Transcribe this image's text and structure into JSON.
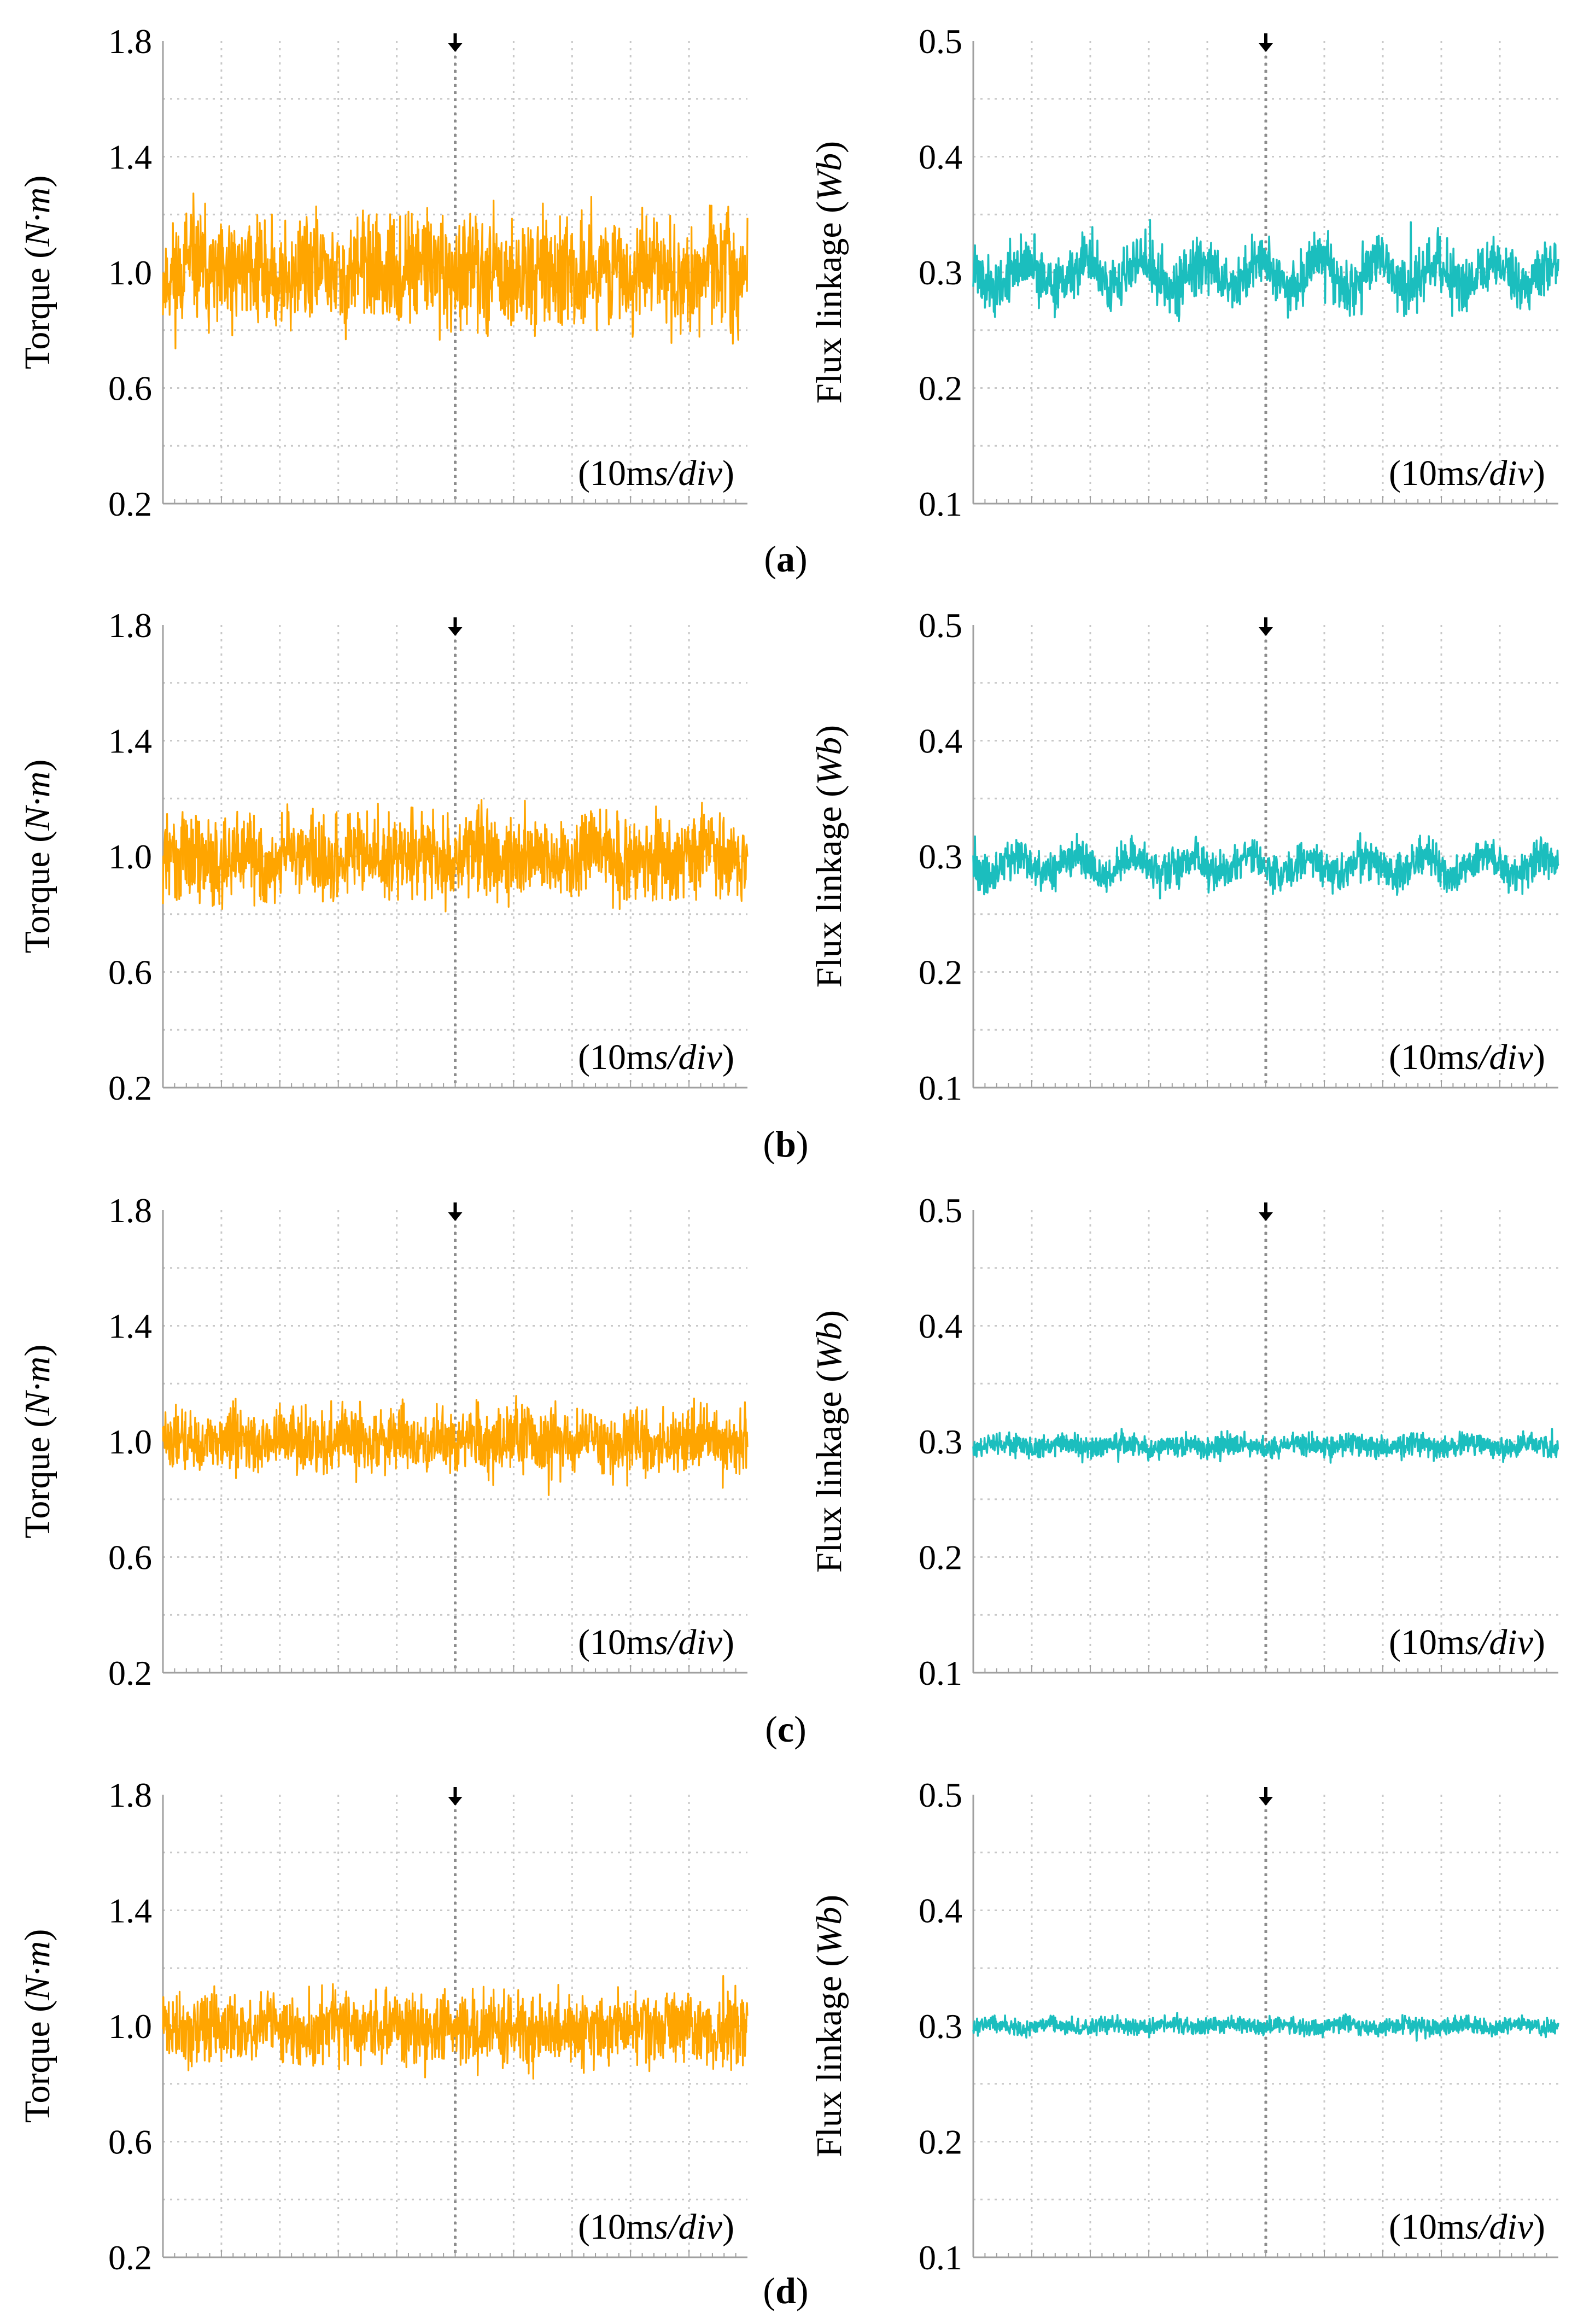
{
  "figure": {
    "panel_labels": [
      {
        "open": "(",
        "letter": "a",
        "close": ")"
      },
      {
        "open": "(",
        "letter": "b",
        "close": ")"
      },
      {
        "open": "(",
        "letter": "c",
        "close": ")"
      },
      {
        "open": "(",
        "letter": "d",
        "close": ")"
      }
    ],
    "colors": {
      "torque": "#FFA500",
      "flux": "#1BBEBE",
      "grid": "#C8C8C8",
      "axis": "#A0A0A0",
      "marker": "#000000"
    }
  },
  "chart_data": [
    {
      "id": "a-torque",
      "type": "line",
      "panel": "a",
      "column": "left",
      "ylabel": {
        "prefix": "Torque (",
        "unit": "N·m",
        "suffix": ")"
      },
      "time_scale": {
        "prefix": "(10m",
        "unit": "s/div",
        "suffix": ")"
      },
      "yticks": [
        "0.2",
        "0.6",
        "1.0",
        "1.4",
        "1.8"
      ],
      "ylim": [
        0.2,
        1.8
      ],
      "xlim": [
        0,
        100
      ],
      "xlabel": "",
      "grid": true,
      "trigger_marker_x": 50,
      "series": [
        {
          "name": "Torque",
          "mean": 1.0,
          "ripple": 0.24,
          "wave_amp": 0.03,
          "wave_period": 10,
          "seed": 11
        }
      ]
    },
    {
      "id": "a-flux",
      "type": "line",
      "panel": "a",
      "column": "right",
      "ylabel": {
        "prefix": "Flux linkage (",
        "unit": "Wb",
        "suffix": ")"
      },
      "time_scale": {
        "prefix": "(10m",
        "unit": "s/div",
        "suffix": ")"
      },
      "yticks": [
        "0.1",
        "0.2",
        "0.3",
        "0.4",
        "0.5"
      ],
      "ylim": [
        0.1,
        0.5
      ],
      "xlim": [
        0,
        100
      ],
      "xlabel": "",
      "grid": true,
      "trigger_marker_x": 50,
      "series": [
        {
          "name": "Flux linkage",
          "mean": 0.298,
          "ripple": 0.03,
          "wave_amp": 0.012,
          "wave_period": 10,
          "seed": 21
        }
      ]
    },
    {
      "id": "b-torque",
      "type": "line",
      "panel": "b",
      "column": "left",
      "ylabel": {
        "prefix": "Torque (",
        "unit": "N·m",
        "suffix": ")"
      },
      "time_scale": {
        "prefix": "(10m",
        "unit": "s/div",
        "suffix": ")"
      },
      "yticks": [
        "0.2",
        "0.6",
        "1.0",
        "1.4",
        "1.8"
      ],
      "ylim": [
        0.2,
        1.8
      ],
      "xlim": [
        0,
        100
      ],
      "xlabel": "",
      "grid": true,
      "trigger_marker_x": 50,
      "series": [
        {
          "name": "Torque",
          "mean": 1.0,
          "ripple": 0.18,
          "wave_amp": 0.02,
          "wave_period": 10,
          "seed": 31
        }
      ]
    },
    {
      "id": "b-flux",
      "type": "line",
      "panel": "b",
      "column": "right",
      "ylabel": {
        "prefix": "Flux linkage (",
        "unit": "Wb",
        "suffix": ")"
      },
      "time_scale": {
        "prefix": "(10m",
        "unit": "s/div",
        "suffix": ")"
      },
      "yticks": [
        "0.1",
        "0.2",
        "0.3",
        "0.4",
        "0.5"
      ],
      "ylim": [
        0.1,
        0.5
      ],
      "xlim": [
        0,
        100
      ],
      "xlabel": "",
      "grid": true,
      "trigger_marker_x": 50,
      "series": [
        {
          "name": "Flux linkage",
          "mean": 0.292,
          "ripple": 0.02,
          "wave_amp": 0.008,
          "wave_period": 10,
          "seed": 41
        }
      ]
    },
    {
      "id": "c-torque",
      "type": "line",
      "panel": "c",
      "column": "left",
      "ylabel": {
        "prefix": "Torque (",
        "unit": "N·m",
        "suffix": ")"
      },
      "time_scale": {
        "prefix": "(10m",
        "unit": "s/div",
        "suffix": ")"
      },
      "yticks": [
        "0.2",
        "0.6",
        "1.0",
        "1.4",
        "1.8"
      ],
      "ylim": [
        0.2,
        1.8
      ],
      "xlim": [
        0,
        100
      ],
      "xlabel": "",
      "grid": true,
      "trigger_marker_x": 50,
      "series": [
        {
          "name": "Torque",
          "mean": 1.0,
          "ripple": 0.14,
          "wave_amp": 0.01,
          "wave_period": 10,
          "seed": 51
        }
      ]
    },
    {
      "id": "c-flux",
      "type": "line",
      "panel": "c",
      "column": "right",
      "ylabel": {
        "prefix": "Flux linkage (",
        "unit": "Wb",
        "suffix": ")"
      },
      "time_scale": {
        "prefix": "(10m",
        "unit": "s/div",
        "suffix": ")"
      },
      "yticks": [
        "0.1",
        "0.2",
        "0.3",
        "0.4",
        "0.5"
      ],
      "ylim": [
        0.1,
        0.5
      ],
      "xlim": [
        0,
        100
      ],
      "xlabel": "",
      "grid": true,
      "trigger_marker_x": 50,
      "series": [
        {
          "name": "Flux linkage",
          "mean": 0.296,
          "ripple": 0.012,
          "wave_amp": 0.002,
          "wave_period": 10,
          "seed": 61
        }
      ]
    },
    {
      "id": "d-torque",
      "type": "line",
      "panel": "d",
      "column": "left",
      "ylabel": {
        "prefix": "Torque (",
        "unit": "N·m",
        "suffix": ")"
      },
      "time_scale": {
        "prefix": "(10m",
        "unit": "s/div",
        "suffix": ")"
      },
      "yticks": [
        "0.2",
        "0.6",
        "1.0",
        "1.4",
        "1.8"
      ],
      "ylim": [
        0.2,
        1.8
      ],
      "xlim": [
        0,
        100
      ],
      "xlabel": "",
      "grid": true,
      "trigger_marker_x": 50,
      "series": [
        {
          "name": "Torque",
          "mean": 0.99,
          "ripple": 0.15,
          "wave_amp": 0.01,
          "wave_period": 10,
          "seed": 71
        }
      ]
    },
    {
      "id": "d-flux",
      "type": "line",
      "panel": "d",
      "column": "right",
      "ylabel": {
        "prefix": "Flux linkage (",
        "unit": "Wb",
        "suffix": ")"
      },
      "time_scale": {
        "prefix": "(10m",
        "unit": "s/div",
        "suffix": ")"
      },
      "yticks": [
        "0.1",
        "0.2",
        "0.3",
        "0.4",
        "0.5"
      ],
      "ylim": [
        0.1,
        0.5
      ],
      "xlim": [
        0,
        100
      ],
      "xlabel": "",
      "grid": true,
      "trigger_marker_x": 50,
      "series": [
        {
          "name": "Flux linkage",
          "mean": 0.3,
          "ripple": 0.009,
          "wave_amp": 0.002,
          "wave_period": 10,
          "seed": 81
        }
      ]
    }
  ]
}
